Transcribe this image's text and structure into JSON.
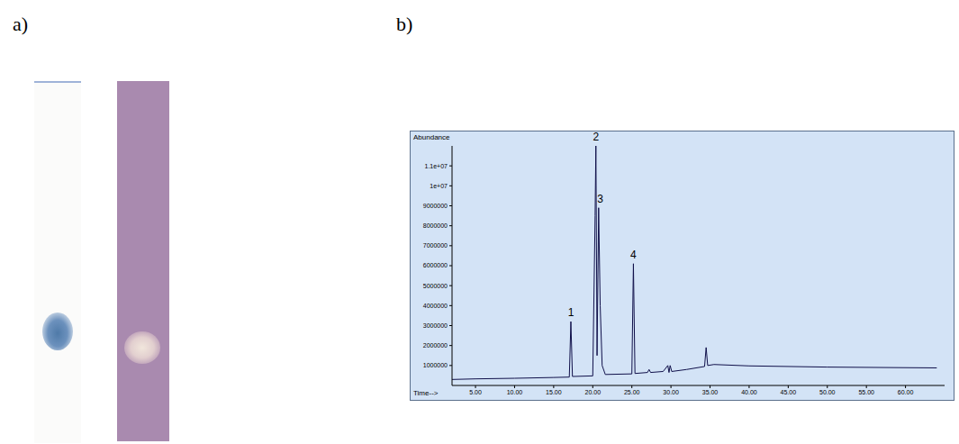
{
  "panel_labels": [
    "a)",
    "b)"
  ],
  "chart_data": {
    "type": "line",
    "x_label": "Time-->",
    "y_label": "Abundance",
    "color": "#10104a",
    "grid": false,
    "x": [
      2,
      5,
      10,
      15,
      17.0,
      17.2,
      17.4,
      20.0,
      20.3,
      20.4,
      20.55,
      20.75,
      20.95,
      21.2,
      21.6,
      25.0,
      25.2,
      25.4,
      27.0,
      27.2,
      27.4,
      29.0,
      29.6,
      29.75,
      29.9,
      30.1,
      32,
      34.3,
      34.5,
      34.7,
      35.5,
      40,
      50,
      64
    ],
    "values": [
      300000,
      330000,
      360000,
      400000,
      420000,
      3200000,
      450000,
      480000,
      8500000,
      12000000,
      1500000,
      8900000,
      4000000,
      1000000,
      550000,
      580000,
      6100000,
      600000,
      650000,
      800000,
      650000,
      700000,
      1000000,
      650000,
      1000000,
      700000,
      800000,
      950000,
      1900000,
      1000000,
      1050000,
      980000,
      920000,
      880000
    ],
    "xlim": [
      2,
      65
    ],
    "xticks": [
      {
        "value": 5,
        "label": "5.00"
      },
      {
        "value": 10,
        "label": "10.00"
      },
      {
        "value": 15,
        "label": "15.00"
      },
      {
        "value": 20,
        "label": "20.00"
      },
      {
        "value": 25,
        "label": "25.00"
      },
      {
        "value": 30,
        "label": "30.00"
      },
      {
        "value": 35,
        "label": "35.00"
      },
      {
        "value": 40,
        "label": "40.00"
      },
      {
        "value": 45,
        "label": "45.00"
      },
      {
        "value": 50,
        "label": "50.00"
      },
      {
        "value": 55,
        "label": "55.00"
      },
      {
        "value": 60,
        "label": "60.00"
      }
    ],
    "ylim": [
      0,
      12000000
    ],
    "yticks": [
      1000000,
      2000000,
      3000000,
      4000000,
      5000000,
      6000000,
      7000000,
      8000000,
      9000000,
      {
        "value": 10000000,
        "label": "1e+07"
      },
      {
        "value": 11000000,
        "label": "1.1e+07"
      }
    ],
    "annotations": [
      {
        "text": "1",
        "x": 17.2,
        "y": 3200000
      },
      {
        "text": "2",
        "x": 20.4,
        "y": 12000000
      },
      {
        "text": "3",
        "x": 20.95,
        "y": 8900000
      },
      {
        "text": "4",
        "x": 25.2,
        "y": 6100000
      }
    ]
  }
}
